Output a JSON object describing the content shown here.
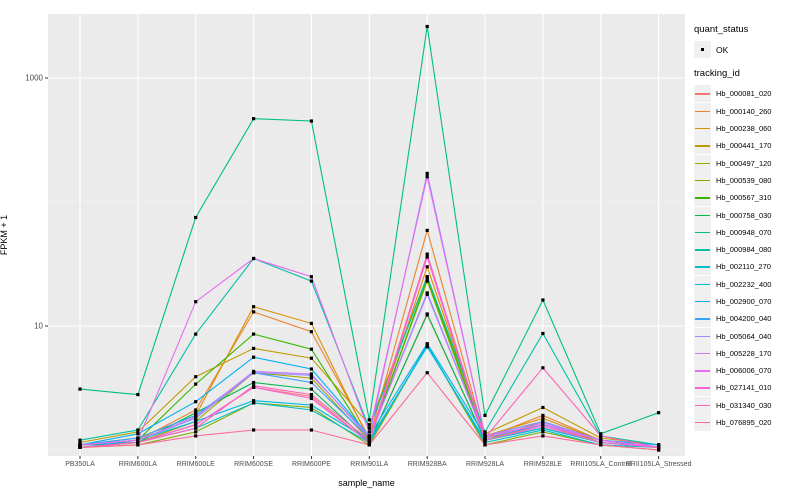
{
  "axes": {
    "y_title": "FPKM + 1",
    "x_title": "sample_name"
  },
  "legend": {
    "quant_status_title": "quant_status",
    "quant_status_ok_label": "OK",
    "tracking_id_title": "tracking_id"
  },
  "style": {
    "panel_bg": "#ebebeb",
    "grid_color": "#ffffff",
    "tick_text_color": "#4d4d4d",
    "point_color": "#000000"
  },
  "chart_data": {
    "type": "line",
    "title": "",
    "xlabel": "sample_name",
    "ylabel": "FPKM + 1",
    "y_scale": "log10",
    "ylim": [
      0.9,
      3400
    ],
    "y_tick_labels": [
      10,
      1000
    ],
    "y_major_gridlines": [
      10,
      1000
    ],
    "y_minor_gridlines": [
      1,
      100
    ],
    "grid": true,
    "legend_position": "right",
    "point_symbol_legend": {
      "title": "quant_status",
      "items": [
        "OK"
      ]
    },
    "categories": [
      "PB350LA",
      "RRIM600LA",
      "RRIM600LE",
      "RRIM600SE",
      "RRIM600PE",
      "RRIM901LA",
      "RRIM928BA",
      "RRIM928LA",
      "RRIM928LE",
      "RRII105LA_Control",
      "RRII105LA_Stressed"
    ],
    "series": [
      {
        "name": "Hb_000081_020",
        "color": "#F8766D",
        "values": [
          1.1,
          1.15,
          1.6,
          3.2,
          2.7,
          1.15,
          12.3,
          1.2,
          1.6,
          1.15,
          1.05
        ]
      },
      {
        "name": "Hb_000140_260",
        "color": "#EA8331",
        "values": [
          1.1,
          1.2,
          2.1,
          13.0,
          9.0,
          1.25,
          59,
          1.25,
          1.9,
          1.2,
          1.05
        ]
      },
      {
        "name": "Hb_000238_060",
        "color": "#D89000",
        "values": [
          1.1,
          1.25,
          1.9,
          14.3,
          10.5,
          1.2,
          30,
          1.3,
          1.8,
          1.2,
          1.05
        ]
      },
      {
        "name": "Hb_000441_170",
        "color": "#C09B00",
        "values": [
          1.15,
          1.4,
          3.9,
          6.6,
          5.5,
          1.6,
          25,
          1.35,
          2.2,
          1.25,
          1.1
        ]
      },
      {
        "name": "Hb_000497_120",
        "color": "#A3A500",
        "values": [
          1.05,
          1.15,
          1.7,
          4.2,
          3.8,
          1.2,
          23,
          1.2,
          1.7,
          1.15,
          1.05
        ]
      },
      {
        "name": "Hb_000539_080",
        "color": "#7CAE00",
        "values": [
          1.05,
          1.1,
          1.4,
          2.4,
          2.2,
          1.1,
          7.0,
          1.1,
          1.4,
          1.1,
          1.0
        ]
      },
      {
        "name": "Hb_000567_310",
        "color": "#39B600",
        "values": [
          1.1,
          1.2,
          3.4,
          8.6,
          6.5,
          1.2,
          24,
          1.25,
          1.6,
          1.2,
          1.05
        ]
      },
      {
        "name": "Hb_000758_030",
        "color": "#00BB4E",
        "values": [
          1.1,
          1.15,
          2.0,
          3.5,
          3.1,
          1.15,
          12.5,
          1.2,
          1.5,
          1.15,
          1.05
        ]
      },
      {
        "name": "Hb_000948_070",
        "color": "#00BF7D",
        "values": [
          3.1,
          2.8,
          75,
          470,
          450,
          1.75,
          2600,
          1.9,
          16.2,
          1.35,
          2.0
        ]
      },
      {
        "name": "Hb_000984_080",
        "color": "#00C1A3",
        "values": [
          1.2,
          1.45,
          8.6,
          35,
          23,
          1.5,
          25,
          1.4,
          8.7,
          1.3,
          1.1
        ]
      },
      {
        "name": "Hb_002110_270",
        "color": "#00BFC4",
        "values": [
          1.05,
          1.15,
          1.5,
          2.4,
          2.1,
          1.15,
          7.0,
          1.15,
          1.45,
          1.1,
          1.05
        ]
      },
      {
        "name": "Hb_002232_400",
        "color": "#00BAE0",
        "values": [
          1.05,
          1.2,
          1.7,
          2.5,
          2.3,
          1.2,
          6.8,
          1.2,
          1.5,
          1.15,
          1.05
        ]
      },
      {
        "name": "Hb_002900_070",
        "color": "#00B0F6",
        "values": [
          1.1,
          1.35,
          2.45,
          5.6,
          4.5,
          1.3,
          7.2,
          1.3,
          1.7,
          1.2,
          1.1
        ]
      },
      {
        "name": "Hb_004200_040",
        "color": "#35A2FF",
        "values": [
          1.1,
          1.25,
          1.9,
          4.2,
          3.5,
          1.25,
          18.5,
          1.25,
          1.6,
          1.2,
          1.05
        ]
      },
      {
        "name": "Hb_005064_040",
        "color": "#9590FF",
        "values": [
          1.1,
          1.2,
          1.8,
          4.2,
          4.0,
          1.3,
          170,
          1.3,
          1.7,
          1.2,
          1.05
        ]
      },
      {
        "name": "Hb_005228_170",
        "color": "#C77CFF",
        "values": [
          1.1,
          1.2,
          1.85,
          4.3,
          4.1,
          1.25,
          18,
          1.25,
          1.65,
          1.2,
          1.05
        ]
      },
      {
        "name": "Hb_006006_070",
        "color": "#E76BF3",
        "values": [
          1.1,
          1.2,
          15.7,
          35,
          25,
          1.4,
          160,
          1.3,
          1.6,
          1.2,
          1.05
        ]
      },
      {
        "name": "Hb_027141_010",
        "color": "#FA62DB",
        "values": [
          1.05,
          1.15,
          1.6,
          3.2,
          2.6,
          1.15,
          36,
          1.2,
          1.55,
          1.15,
          1.05
        ]
      },
      {
        "name": "Hb_031340_030",
        "color": "#FF62BC",
        "values": [
          1.05,
          1.15,
          1.5,
          3.3,
          2.8,
          1.2,
          38,
          1.25,
          4.6,
          1.3,
          1.05
        ]
      },
      {
        "name": "Hb_076895_020",
        "color": "#FF6A98",
        "values": [
          1.05,
          1.1,
          1.3,
          1.45,
          1.45,
          1.1,
          4.2,
          1.1,
          1.3,
          1.1,
          1.0
        ]
      }
    ]
  }
}
